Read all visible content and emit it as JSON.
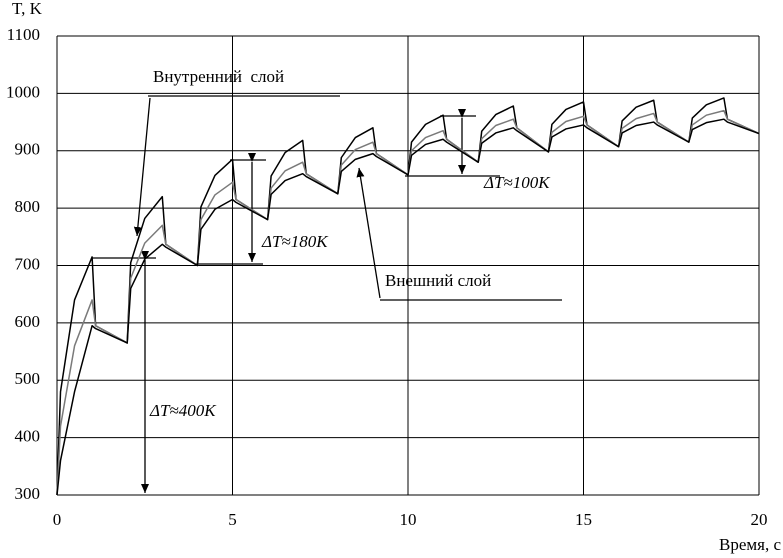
{
  "chart_data": {
    "type": "line",
    "ylabel": "T, K",
    "xlabel": "Время, с",
    "x": [
      0,
      0.1,
      0.5,
      1,
      1.1,
      2,
      2.1,
      2.5,
      3,
      3.1,
      4,
      4.1,
      4.5,
      5,
      5.1,
      6,
      6.1,
      6.5,
      7,
      7.1,
      8,
      8.1,
      8.5,
      9,
      9.1,
      10,
      10.1,
      10.5,
      11,
      11.1,
      12,
      12.1,
      12.5,
      13,
      13.1,
      14,
      14.1,
      14.5,
      15,
      15.1,
      16,
      16.1,
      16.5,
      17,
      17.1,
      18,
      18.1,
      18.5,
      19,
      19.1,
      20
    ],
    "series": [
      {
        "color": "#000000",
        "values": [
          300,
          480,
          640,
          715,
          595,
          565,
          705,
          782,
          820,
          737,
          700,
          802,
          857,
          885,
          815,
          780,
          856,
          897,
          918,
          860,
          825,
          888,
          923,
          940,
          895,
          858,
          915,
          946,
          962,
          920,
          880,
          934,
          963,
          978,
          940,
          898,
          946,
          972,
          985,
          945,
          907,
          952,
          976,
          988,
          950,
          915,
          957,
          980,
          992,
          955,
          930
        ]
      },
      {
        "color": "#7a7a7a",
        "values": [
          300,
          420,
          560,
          640,
          595,
          565,
          678,
          739,
          770,
          737,
          700,
          780,
          823,
          845,
          815,
          780,
          835,
          865,
          880,
          860,
          825,
          875,
          902,
          915,
          895,
          858,
          900,
          923,
          935,
          920,
          880,
          921,
          944,
          955,
          940,
          898,
          932,
          951,
          960,
          945,
          907,
          939,
          956,
          965,
          950,
          915,
          945,
          962,
          970,
          955,
          930
        ]
      },
      {
        "color": "#000000",
        "values": [
          300,
          360,
          480,
          595,
          590,
          565,
          660,
          711,
          737,
          732,
          700,
          763,
          798,
          815,
          810,
          780,
          824,
          848,
          860,
          855,
          825,
          864,
          885,
          895,
          890,
          858,
          892,
          911,
          920,
          915,
          880,
          913,
          931,
          940,
          935,
          898,
          924,
          938,
          945,
          940,
          907,
          931,
          944,
          950,
          945,
          915,
          937,
          949,
          955,
          950,
          930
        ]
      }
    ],
    "xlim": [
      0,
      20
    ],
    "xticks": [
      0,
      5,
      10,
      15,
      20
    ],
    "ylim": [
      300,
      1100
    ],
    "yticks": [
      300,
      400,
      500,
      600,
      700,
      800,
      900,
      1000,
      1100
    ],
    "grid": true,
    "annotations": [
      "Внутренний  слой",
      "Внешний слой",
      "ΔT≈400K",
      "ΔT≈180K",
      "ΔT≈100K"
    ]
  }
}
